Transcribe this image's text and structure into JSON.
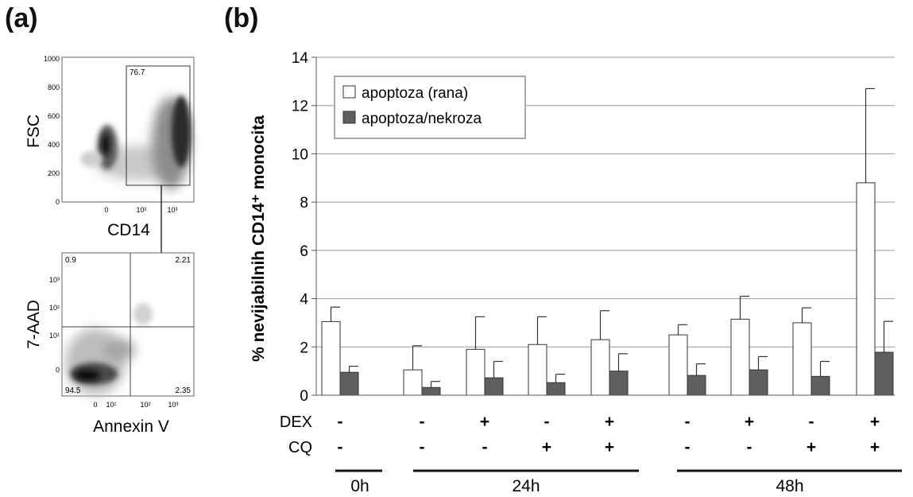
{
  "panel_a": {
    "label": "(a)",
    "plot1": {
      "ylabel": "FSC",
      "xlabel": "CD14",
      "yticks": [
        "1000",
        "800",
        "600",
        "400",
        "200",
        "0"
      ],
      "xticks": [
        "0",
        "10²",
        "10³"
      ],
      "gate_value": "76.7"
    },
    "plot2": {
      "ylabel": "7-AAD",
      "xlabel": "Annexin V",
      "yticks": [
        "10³",
        "10²",
        "10¹",
        "0"
      ],
      "xticks": [
        "0",
        "10¹",
        "10²",
        "10³"
      ],
      "q_ul": "0.9",
      "q_ur": "2.21",
      "q_ll": "94.5",
      "q_lr": "2.35"
    }
  },
  "chart_data": {
    "panel_label": "(b)",
    "type": "bar",
    "ylabel": "% nevijabilnih CD14⁺ monocita",
    "ylim": [
      0,
      14
    ],
    "yticks": [
      0,
      2,
      4,
      6,
      8,
      10,
      12,
      14
    ],
    "grid": "horizontal",
    "legend_position": "top-left",
    "series": [
      {
        "name": "apoptoza (rana)",
        "color": "#ffffff",
        "values": [
          3.05,
          1.05,
          1.9,
          2.1,
          2.3,
          2.5,
          3.15,
          3.0,
          8.8
        ],
        "errors": [
          0.6,
          1.0,
          1.35,
          1.15,
          1.2,
          0.42,
          0.95,
          0.62,
          3.9
        ]
      },
      {
        "name": "apoptoza/nekroza",
        "color": "#5f5f5f",
        "values": [
          0.95,
          0.32,
          0.72,
          0.52,
          1.0,
          0.82,
          1.05,
          0.78,
          1.78
        ],
        "errors": [
          0.25,
          0.25,
          0.68,
          0.35,
          0.72,
          0.48,
          0.55,
          0.62,
          1.28
        ]
      }
    ],
    "conditions": {
      "row_labels": [
        "DEX",
        "CQ"
      ],
      "dex": [
        "-",
        "-",
        "+",
        "-",
        "+",
        "-",
        "+",
        "-",
        "+"
      ],
      "cq": [
        "-",
        "-",
        "-",
        "+",
        "+",
        "-",
        "-",
        "+",
        "+"
      ]
    },
    "time_groups": [
      "0h",
      "24h",
      "48h"
    ]
  }
}
